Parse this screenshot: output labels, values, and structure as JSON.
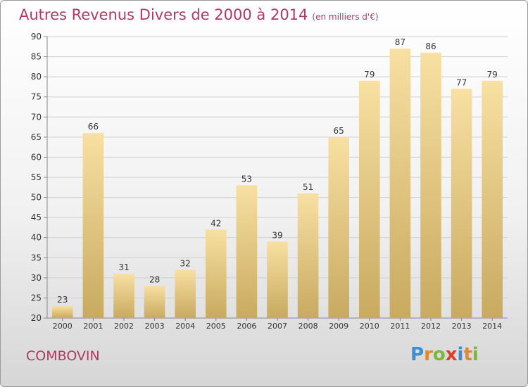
{
  "chart_data": {
    "type": "bar",
    "title": "Autres Revenus Divers de 2000 à 2014",
    "subtitle": "(en milliers d'€)",
    "xlabel": "",
    "ylabel": "",
    "categories": [
      "2000",
      "2001",
      "2002",
      "2003",
      "2004",
      "2005",
      "2006",
      "2007",
      "2008",
      "2009",
      "2010",
      "2011",
      "2012",
      "2013",
      "2014"
    ],
    "values": [
      23,
      66,
      31,
      28,
      32,
      42,
      53,
      39,
      51,
      65,
      79,
      87,
      86,
      77,
      79
    ],
    "ylim": [
      20,
      90
    ],
    "yticks": [
      20,
      25,
      30,
      35,
      40,
      45,
      50,
      55,
      60,
      65,
      70,
      75,
      80,
      85,
      90
    ],
    "grid": true,
    "bar_color_top": "#f8e0a2",
    "bar_color_bottom": "#c8aa60"
  },
  "place_name": "COMBOVIN",
  "logo": {
    "text": "Proxiti",
    "letters": [
      {
        "ch": "P",
        "color": "#3d8fd1"
      },
      {
        "ch": "r",
        "color": "#e8872a"
      },
      {
        "ch": "o",
        "color": "#7ab83c"
      },
      {
        "ch": "x",
        "color": "#d83f2c"
      },
      {
        "ch": "i",
        "color": "#3d8fd1"
      },
      {
        "ch": "t",
        "color": "#e8872a"
      },
      {
        "ch": "i",
        "color": "#7ab83c"
      }
    ]
  },
  "colors": {
    "accent": "#b03a62",
    "grid": "#cfcfcf",
    "axis_text": "#333333"
  }
}
